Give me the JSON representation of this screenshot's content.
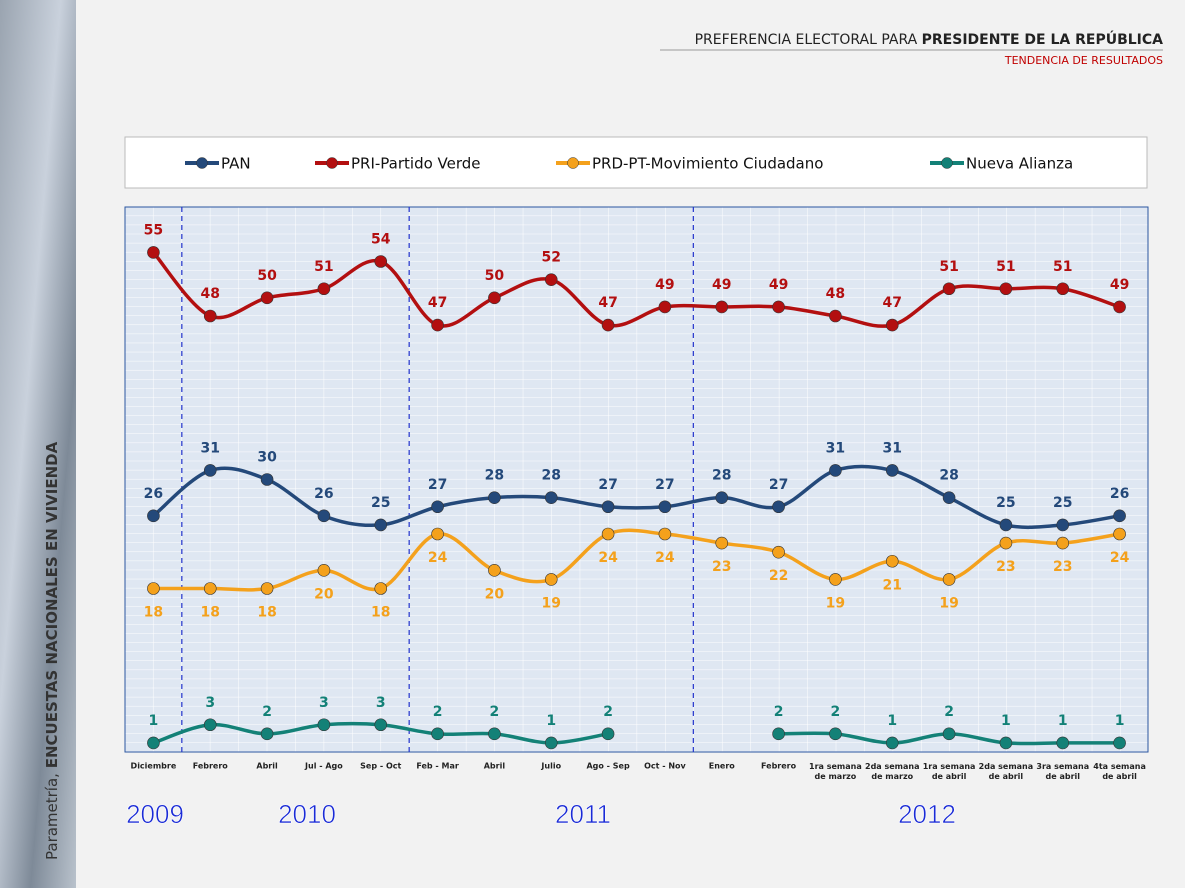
{
  "chart_data": {
    "type": "line",
    "title_prefix": "PREFERENCIA ELECTORAL PARA ",
    "title_bold": "PRESIDENTE DE LA REPÚBLICA",
    "subtitle": "TENDENCIA DE RESULTADOS",
    "side_prefix": "Parametría, ",
    "side_bold": "ENCUESTAS NACIONALES EN VIVIENDA",
    "years": [
      "2009",
      "2010",
      "2011",
      "2012"
    ],
    "categories": [
      "Diciembre",
      "Febrero",
      "Abril",
      "Jul - Ago",
      "Sep - Oct",
      "Feb - Mar",
      "Abril",
      "Julio",
      "Ago - Sep",
      "Oct - Nov",
      "Enero",
      "Febrero",
      "1ra semana de marzo",
      "2da semana de marzo",
      "1ra semana de abril",
      "2da semana de abril",
      "3ra semana de abril",
      "4ta semana de abril"
    ],
    "ylim": [
      0,
      60
    ],
    "series": [
      {
        "name": "PAN",
        "color": "#24497a",
        "values": [
          26,
          31,
          30,
          26,
          25,
          27,
          28,
          28,
          27,
          27,
          28,
          27,
          31,
          31,
          28,
          25,
          25,
          26
        ]
      },
      {
        "name": "PRI-Partido Verde",
        "color": "#b30f10",
        "values": [
          55,
          48,
          50,
          51,
          54,
          47,
          50,
          52,
          47,
          49,
          49,
          49,
          48,
          47,
          51,
          51,
          51,
          49
        ]
      },
      {
        "name": "PRD-PT-Movimiento Ciudadano",
        "color": "#f4a11c",
        "values": [
          18,
          18,
          18,
          20,
          18,
          24,
          20,
          19,
          24,
          24,
          23,
          22,
          19,
          21,
          19,
          23,
          23,
          24
        ]
      },
      {
        "name": "Nueva Alianza",
        "color": "#138177",
        "values": [
          1,
          3,
          2,
          3,
          3,
          2,
          2,
          1,
          2,
          null,
          null,
          2,
          2,
          1,
          2,
          1,
          1,
          1
        ]
      }
    ]
  }
}
